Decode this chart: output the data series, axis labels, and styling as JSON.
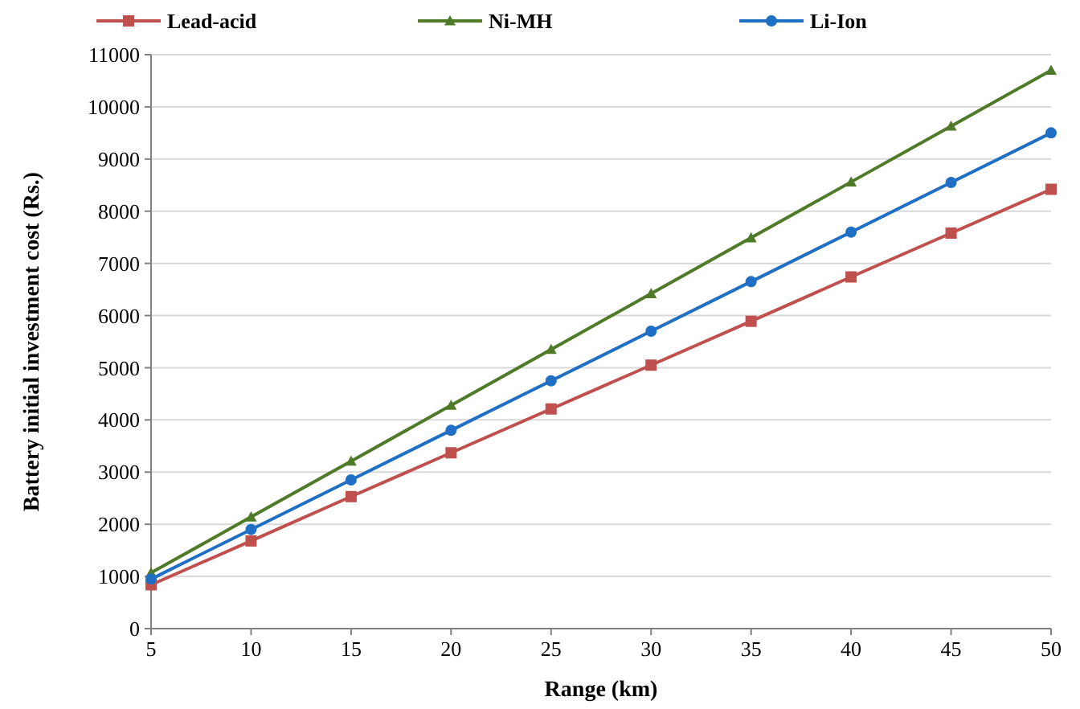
{
  "chart_data": {
    "type": "line",
    "xlabel": "Range (km)",
    "ylabel": "Battery initial investment cost (Rs.)",
    "x": [
      5,
      10,
      15,
      20,
      25,
      30,
      35,
      40,
      45,
      50
    ],
    "xlim": [
      5,
      50
    ],
    "xticks": [
      5,
      10,
      15,
      20,
      25,
      30,
      35,
      40,
      45,
      50
    ],
    "ylim": [
      0,
      11000
    ],
    "yticks": [
      0,
      1000,
      2000,
      3000,
      4000,
      5000,
      6000,
      7000,
      8000,
      9000,
      10000,
      11000
    ],
    "grid": "y",
    "legend": "top",
    "line_style": "solid",
    "series": [
      {
        "name": "Lead-acid",
        "color": "#c0504d",
        "marker": "square",
        "values": [
          840,
          1680,
          2530,
          3370,
          4210,
          5050,
          5890,
          6740,
          7580,
          8420
        ]
      },
      {
        "name": "Ni-MH",
        "color": "#4f7a28",
        "marker": "triangle",
        "values": [
          1070,
          2140,
          3210,
          4280,
          5350,
          6420,
          7490,
          8560,
          9630,
          10700
        ]
      },
      {
        "name": "Li-Ion",
        "color": "#1f6fc5",
        "marker": "circle",
        "values": [
          950,
          1900,
          2850,
          3800,
          4750,
          5700,
          6650,
          7600,
          8550,
          9500
        ]
      }
    ]
  }
}
